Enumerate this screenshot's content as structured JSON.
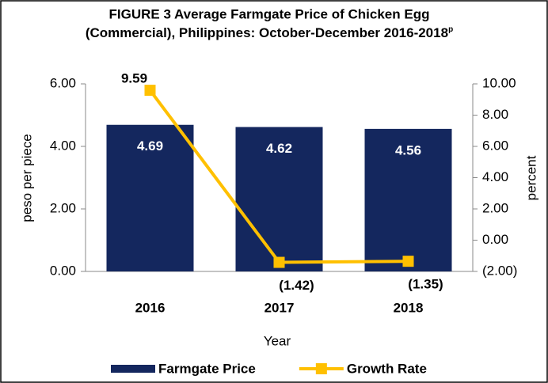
{
  "chart_data": {
    "type": "bar_line",
    "title": [
      "FIGURE 3 Average Farmgate Price of Chicken Egg",
      "(Commercial), Philippines: October-December 2016-2018"
    ],
    "title_superscript": "p",
    "x_label": "Year",
    "y_label": "peso per piece",
    "y2_label": "percent",
    "categories": [
      "2016",
      "2017",
      "2018"
    ],
    "series": [
      {
        "name": "Farmgate Price",
        "type": "bar",
        "color": "#14275e",
        "values": [
          4.69,
          4.62,
          4.56
        ]
      },
      {
        "name": "Growth Rate",
        "type": "line",
        "axis": "y2",
        "color": "#ffc000",
        "values": [
          9.59,
          -1.42,
          -1.35
        ],
        "value_labels": [
          "9.59",
          "(1.42)",
          "(1.35)"
        ]
      }
    ],
    "ylim": [
      0,
      6
    ],
    "yticks": [
      {
        "value": 0,
        "label": "0.00"
      },
      {
        "value": 2,
        "label": "2.00"
      },
      {
        "value": 4,
        "label": "4.00"
      },
      {
        "value": 6,
        "label": "6.00"
      }
    ],
    "y2lim": [
      -2,
      10
    ],
    "y2ticks": [
      {
        "value": -2,
        "label": "(2.00)"
      },
      {
        "value": 0,
        "label": "0.00"
      },
      {
        "value": 2,
        "label": "2.00"
      },
      {
        "value": 4,
        "label": "4.00"
      },
      {
        "value": 6,
        "label": "6.00"
      },
      {
        "value": 8,
        "label": "8.00"
      },
      {
        "value": 10,
        "label": "10.00"
      }
    ],
    "legend": "bottom"
  }
}
